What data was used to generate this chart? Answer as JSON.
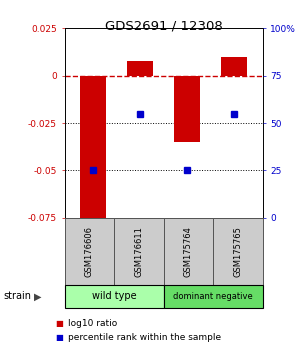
{
  "title": "GDS2691 / 12308",
  "samples": [
    "GSM176606",
    "GSM176611",
    "GSM175764",
    "GSM175765"
  ],
  "log10_ratio": [
    -0.075,
    0.008,
    -0.035,
    0.01
  ],
  "percentile_rank": [
    25,
    55,
    25,
    55
  ],
  "bar_color": "#cc0000",
  "square_color": "#0000cc",
  "ylim_left": [
    -0.075,
    0.025
  ],
  "ylim_right": [
    0,
    100
  ],
  "hlines": [
    0.0,
    -0.025,
    -0.05
  ],
  "hline_styles": [
    "dashed",
    "dotted",
    "dotted"
  ],
  "hline_colors": [
    "#cc0000",
    "#000000",
    "#000000"
  ],
  "hline_lw": [
    1.0,
    0.7,
    0.7
  ],
  "groups": [
    {
      "label": "wild type",
      "color": "#aaffaa"
    },
    {
      "label": "dominant negative",
      "color": "#66dd66"
    }
  ],
  "strain_label": "strain",
  "arrow": "▶",
  "legend_red_label": "log10 ratio",
  "legend_blue_label": "percentile rank within the sample",
  "left_tick_color": "#cc0000",
  "right_tick_color": "#0000cc",
  "background_color": "#ffffff",
  "bar_width": 0.55,
  "sample_box_color": "#cccccc",
  "sample_box_edge": "#555555",
  "yticks_left": [
    -0.075,
    -0.05,
    -0.025,
    0.0,
    0.025
  ],
  "ytick_labels_left": [
    "-0.075",
    "-0.05",
    "-0.025",
    "0",
    "0.025"
  ],
  "yticks_right": [
    0,
    25,
    50,
    75,
    100
  ],
  "ytick_labels_right": [
    "0",
    "25",
    "50",
    "75",
    "100%"
  ]
}
